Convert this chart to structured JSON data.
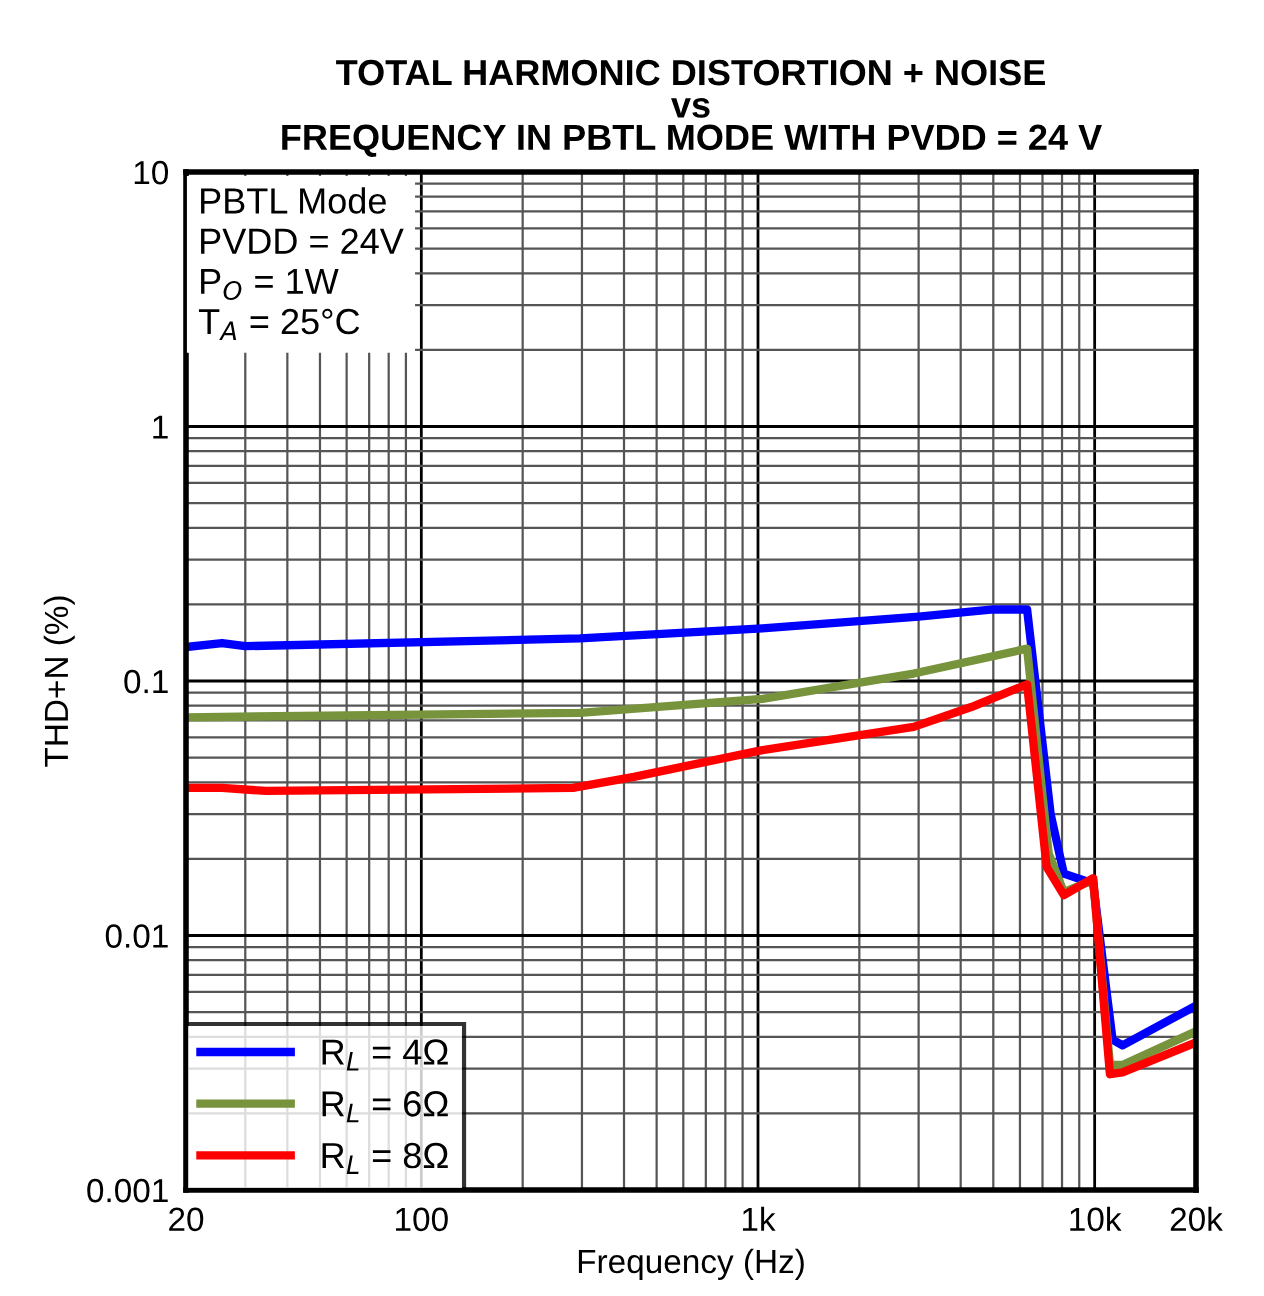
{
  "chart_data": {
    "type": "line",
    "title": "TOTAL HARMONIC DISTORTION + NOISE\nvs\nFREQUENCY IN PBTL MODE WITH PVDD = 24 V",
    "xlabel": "Frequency (Hz)",
    "ylabel": "THD+N (%)",
    "annotations": [
      "PBTL Mode",
      "PVDD = 24V",
      "P$_{O}$ = 1W",
      "T$_{A}$ = 25°C"
    ],
    "log": "xy",
    "grid": true,
    "legend": "bottom left",
    "line_style": "solid",
    "marker": "none",
    "xlim": [
      20,
      20000
    ],
    "xticks": [
      20,
      100,
      {
        "value": 1000,
        "label": "1k"
      },
      {
        "value": 10000,
        "label": "10k"
      },
      {
        "value": 20000,
        "label": "20k"
      }
    ],
    "ylim": [
      0.001,
      10
    ],
    "yticks": [
      0.001,
      0.01,
      0.1,
      1,
      10
    ],
    "series": [
      {
        "name": "R$_{L}$ = 4Ω",
        "color": "#0000ff",
        "x": [
          20,
          25.6,
          30,
          296,
          1030,
          3000,
          5000,
          6300,
          7400,
          8100,
          9900,
          11300,
          12100,
          20000
        ],
        "values": [
          0.136,
          0.141,
          0.137,
          0.147,
          0.161,
          0.179,
          0.191,
          0.191,
          0.03,
          0.0175,
          0.016,
          0.0039,
          0.0037,
          0.0053
        ]
      },
      {
        "name": "R$_{L}$ = 6Ω",
        "color": "#77933c",
        "x": [
          20,
          296,
          1030,
          2900,
          6300,
          7300,
          8100,
          9900,
          11100,
          12100,
          20000
        ],
        "values": [
          0.072,
          0.075,
          0.085,
          0.107,
          0.134,
          0.021,
          0.0148,
          0.0165,
          0.0031,
          0.0031,
          0.0042
        ]
      },
      {
        "name": "R$_{L}$ = 8Ω",
        "color": "#ff0000",
        "x": [
          20,
          25.6,
          34.5,
          282,
          428,
          1030,
          2900,
          4300,
          6300,
          7200,
          8100,
          9900,
          11100,
          12100,
          20000
        ],
        "values": [
          0.038,
          0.038,
          0.037,
          0.038,
          0.042,
          0.0535,
          0.066,
          0.079,
          0.097,
          0.0186,
          0.0144,
          0.0168,
          0.00285,
          0.0029,
          0.0038
        ]
      }
    ]
  }
}
